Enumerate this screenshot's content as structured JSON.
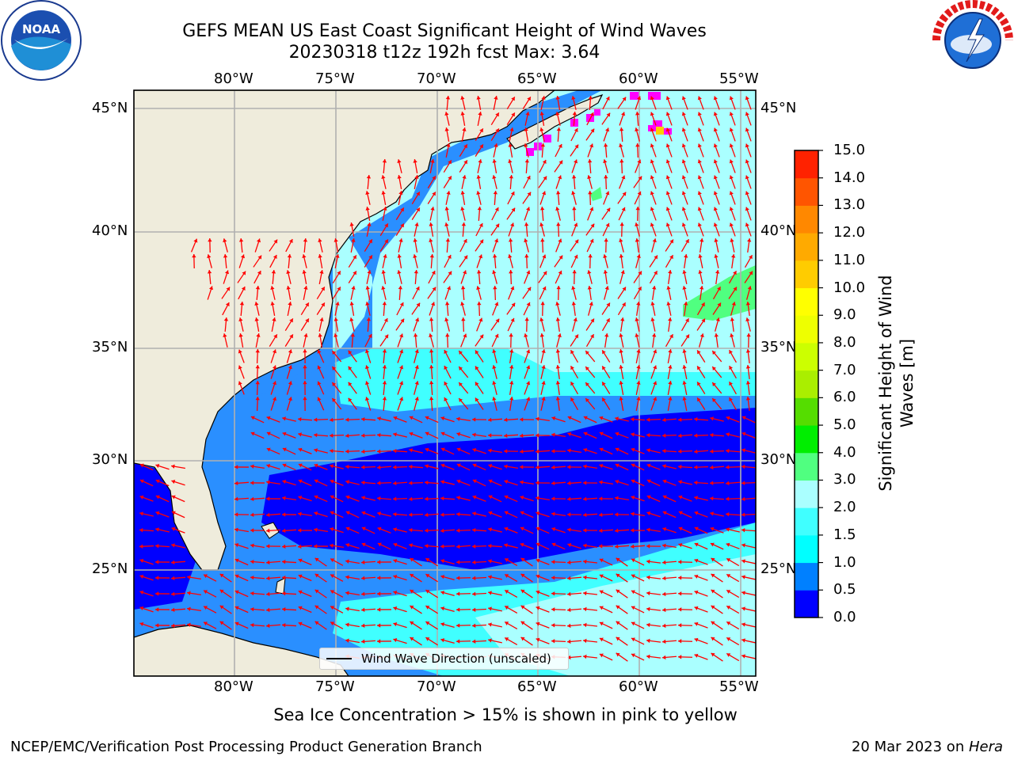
{
  "title": {
    "line1": "GEFS MEAN US East Coast Significant Height of Wind Waves",
    "line2": "20230318 t12z 192h fcst   Max: 3.64"
  },
  "logos": {
    "left": {
      "name": "NOAA",
      "ring_text": "NATIONAL OCEANIC AND ATMOSPHERIC ADMINISTRATION · U.S. DEPARTMENT OF COMMERCE"
    },
    "right": {
      "name": "NATIONAL WEATHER SERVICE"
    }
  },
  "map": {
    "lon_labels": [
      "80°W",
      "75°W",
      "70°W",
      "65°W",
      "60°W",
      "55°W"
    ],
    "lat_labels": [
      "45°N",
      "40°N",
      "35°N",
      "30°N",
      "25°N"
    ],
    "legend_label": "Wind Wave Direction (unscaled)",
    "arrow_color": "#ff0000",
    "land_color": "#efecdc",
    "grid_color": "#b0b0b0"
  },
  "colorbar": {
    "label": "Significant Height of Wind Waves [m]",
    "ticks": [
      "0.0",
      "0.5",
      "1.0",
      "1.5",
      "2.0",
      "3.0",
      "4.0",
      "5.0",
      "6.0",
      "7.0",
      "8.0",
      "9.0",
      "10.0",
      "11.0",
      "12.0",
      "13.0",
      "14.0",
      "15.0"
    ],
    "colors": [
      "#0000ff",
      "#0080ff",
      "#00ffff",
      "#40ffff",
      "#aaffff",
      "#50ff80",
      "#00ee00",
      "#55dd00",
      "#aaee00",
      "#ccff00",
      "#eeff00",
      "#ffff00",
      "#ffcc00",
      "#ffaa00",
      "#ff8800",
      "#ff5500",
      "#ff2200"
    ]
  },
  "footer": {
    "ice_note": "Sea Ice Concentration > 15% is shown in pink to yellow",
    "left": "NCEP/EMC/Verification Post Processing Product Generation Branch",
    "date": "20 Mar 2023 on ",
    "machine": "Hera"
  }
}
